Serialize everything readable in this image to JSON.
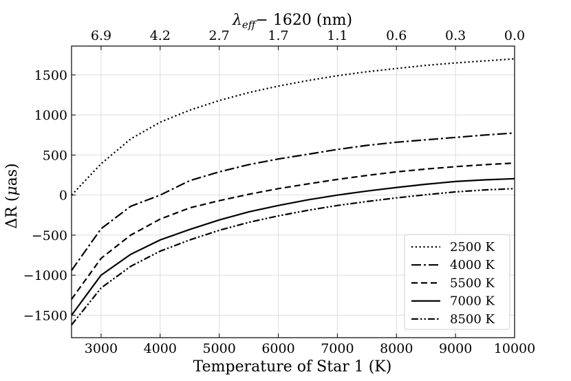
{
  "chart_data": {
    "type": "line",
    "xlabel": "Temperature of Star 1 (K)",
    "ylabel_symbol": "ΔR",
    "ylabel_unit_mu": "μ",
    "ylabel_unit_rest": "as",
    "top_xlabel_lambda": "λ",
    "top_xlabel_sub": "eff",
    "top_xlabel_rest": "− 1620 (nm)",
    "xlim": [
      2500,
      10000
    ],
    "ylim": [
      -1780,
      1860
    ],
    "grid": true,
    "legend_position": "lower-right",
    "x_ticks": [
      3000,
      4000,
      5000,
      6000,
      7000,
      8000,
      9000,
      10000
    ],
    "x_tick_labels": [
      "3000",
      "4000",
      "5000",
      "6000",
      "7000",
      "8000",
      "9000",
      "10000"
    ],
    "y_ticks": [
      -1500,
      -1000,
      -500,
      0,
      500,
      1000,
      1500
    ],
    "y_tick_labels": [
      "−1500",
      "−1000",
      "−500",
      "0",
      "500",
      "1000",
      "1500"
    ],
    "top_ticks": [
      3000,
      4000,
      5000,
      6000,
      7000,
      8000,
      9000,
      10000
    ],
    "top_tick_labels": [
      "6.9",
      "4.2",
      "2.7",
      "1.7",
      "1.1",
      "0.6",
      "0.3",
      "0.0"
    ],
    "x": [
      2500,
      3000,
      3500,
      4000,
      4500,
      5000,
      5500,
      6000,
      6500,
      7000,
      7500,
      8000,
      8500,
      9000,
      9500,
      10000
    ],
    "series": [
      {
        "name": "2500 K",
        "dash": "dotted",
        "values": [
          0,
          390,
          700,
          910,
          1060,
          1180,
          1280,
          1360,
          1430,
          1490,
          1540,
          1580,
          1620,
          1650,
          1675,
          1700
        ]
      },
      {
        "name": "4000 K",
        "dash": "dashdot",
        "values": [
          -940,
          -420,
          -140,
          0,
          180,
          290,
          380,
          450,
          510,
          570,
          620,
          660,
          690,
          720,
          750,
          775
        ]
      },
      {
        "name": "5500 K",
        "dash": "dashed",
        "values": [
          -1300,
          -790,
          -500,
          -300,
          -160,
          -70,
          10,
          80,
          140,
          195,
          245,
          290,
          325,
          355,
          380,
          400
        ]
      },
      {
        "name": "7000 K",
        "dash": "solid",
        "values": [
          -1500,
          -1000,
          -740,
          -560,
          -430,
          -310,
          -210,
          -130,
          -60,
          0,
          50,
          95,
          135,
          170,
          190,
          205
        ]
      },
      {
        "name": "8500 K",
        "dash": "dashdotdot",
        "values": [
          -1620,
          -1160,
          -890,
          -700,
          -560,
          -440,
          -340,
          -260,
          -190,
          -130,
          -80,
          -35,
          5,
          40,
          65,
          80
        ]
      }
    ]
  }
}
